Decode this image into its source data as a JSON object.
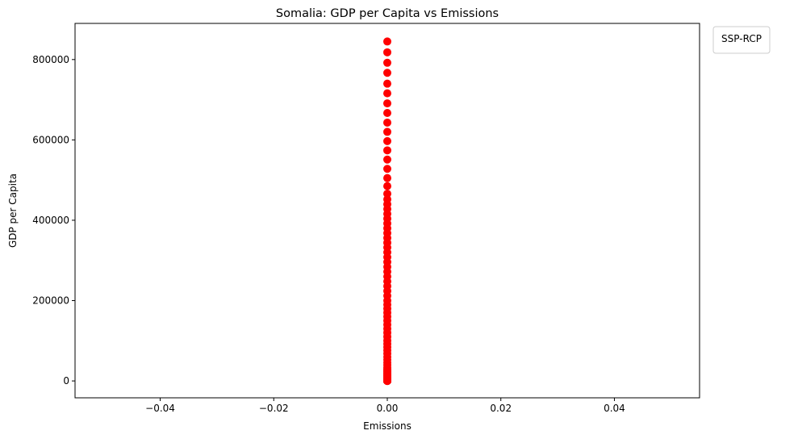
{
  "chart_data": {
    "type": "scatter",
    "title": "Somalia: GDP per Capita vs Emissions",
    "xlabel": "Emissions",
    "ylabel": "GDP per Capita",
    "xlim": [
      -0.055,
      0.055
    ],
    "ylim": [
      -42000,
      890000
    ],
    "x_ticks": [
      -0.04,
      -0.02,
      0.0,
      0.02,
      0.04
    ],
    "x_tick_labels": [
      "−0.04",
      "−0.02",
      "0.00",
      "0.02",
      "0.04"
    ],
    "y_ticks": [
      0,
      200000,
      400000,
      600000,
      800000
    ],
    "y_tick_labels": [
      "0",
      "200000",
      "400000",
      "600000",
      "800000"
    ],
    "grid": false,
    "legend": {
      "title": "SSP-RCP",
      "placement": "outside-top-right"
    },
    "marker_color": "#ff0000",
    "series": [
      {
        "x": [
          0,
          0,
          0,
          0,
          0,
          0,
          0,
          0,
          0,
          0,
          0,
          0,
          0,
          0,
          0,
          0,
          0,
          0,
          0,
          0,
          0,
          0,
          0,
          0,
          0,
          0,
          0,
          0,
          0,
          0,
          0,
          0,
          0,
          0,
          0,
          0,
          0,
          0,
          0,
          0,
          0,
          0,
          0,
          0,
          0,
          0,
          0,
          0,
          0,
          0,
          0,
          0,
          0,
          0,
          0,
          0,
          0,
          0,
          0,
          0,
          0,
          0,
          0,
          0,
          0,
          0,
          0,
          0,
          0,
          0,
          0,
          0,
          0,
          0,
          0,
          0,
          0,
          0,
          0,
          0,
          0,
          0,
          0,
          0,
          0,
          0
        ],
        "y": [
          845000,
          818000,
          792000,
          767000,
          740000,
          716000,
          691000,
          667000,
          643000,
          620000,
          597000,
          574000,
          551000,
          528000,
          505000,
          485000,
          466000,
          452000,
          440000,
          428000,
          416000,
          404000,
          392000,
          380000,
          368000,
          356000,
          344000,
          332000,
          320000,
          308000,
          296000,
          284000,
          272000,
          260000,
          248000,
          236000,
          224000,
          212000,
          200000,
          190000,
          180000,
          170000,
          160000,
          150000,
          140000,
          130000,
          120000,
          110000,
          100000,
          92000,
          84000,
          76000,
          68000,
          60000,
          53000,
          46000,
          40000,
          34000,
          28000,
          23000,
          18000,
          14000,
          10000,
          7000,
          4500,
          2500,
          1000,
          500,
          200,
          100,
          50,
          20,
          10,
          5,
          3,
          2,
          1,
          0,
          30000,
          25000,
          20000,
          15000,
          12000,
          8000,
          6000,
          3000
        ]
      }
    ]
  }
}
